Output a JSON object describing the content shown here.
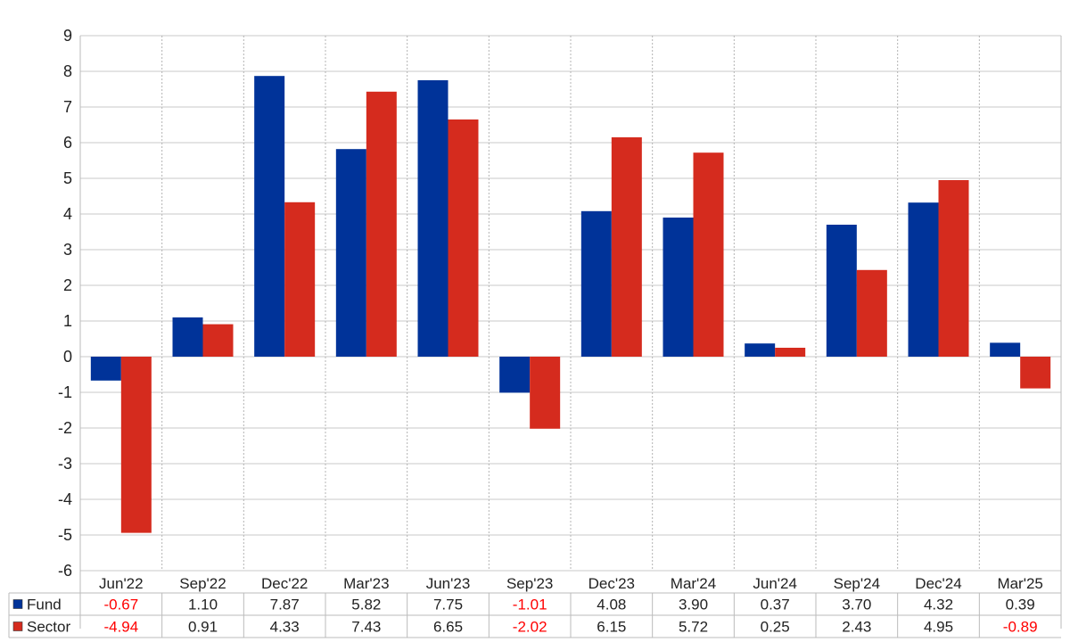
{
  "chart_data": {
    "type": "bar",
    "title": "",
    "xlabel": "",
    "ylabel": "",
    "ylim": [
      -6,
      9
    ],
    "yticks": [
      9,
      8,
      7,
      6,
      5,
      4,
      3,
      2,
      1,
      0,
      -1,
      -2,
      -3,
      -4,
      -5,
      -6
    ],
    "grid": true,
    "legend": "table-bottom-left",
    "categories": [
      "Jun'22",
      "Sep'22",
      "Dec'22",
      "Mar'23",
      "Jun'23",
      "Sep'23",
      "Dec'23",
      "Mar'24",
      "Jun'24",
      "Sep'24",
      "Dec'24",
      "Mar'25"
    ],
    "series": [
      {
        "name": "Fund",
        "color": "#003399",
        "values": [
          -0.67,
          1.1,
          7.87,
          5.82,
          7.75,
          -1.01,
          4.08,
          3.9,
          0.37,
          3.7,
          4.32,
          0.39
        ],
        "labels": [
          "-0.67",
          "1.10",
          "7.87",
          "5.82",
          "7.75",
          "-1.01",
          "4.08",
          "3.90",
          "0.37",
          "3.70",
          "4.32",
          "0.39"
        ]
      },
      {
        "name": "Sector",
        "color": "#d52b1e",
        "values": [
          -4.94,
          0.91,
          4.33,
          7.43,
          6.65,
          -2.02,
          6.15,
          5.72,
          0.25,
          2.43,
          4.95,
          -0.89
        ],
        "labels": [
          "-4.94",
          "0.91",
          "4.33",
          "7.43",
          "6.65",
          "-2.02",
          "6.15",
          "5.72",
          "0.25",
          "2.43",
          "4.95",
          "-0.89"
        ]
      }
    ],
    "negative_label_color": "#ff0000",
    "positive_label_color": "#222222"
  }
}
